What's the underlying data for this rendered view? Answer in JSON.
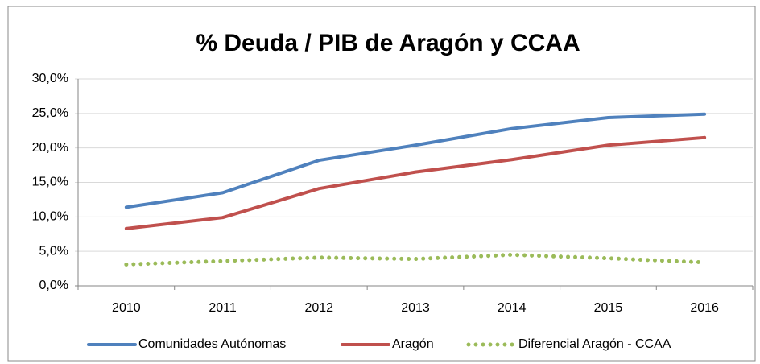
{
  "chart_data": {
    "type": "line",
    "title": "% Deuda / PIB de Aragón y CCAA",
    "categories": [
      "2010",
      "2011",
      "2012",
      "2013",
      "2014",
      "2015",
      "2016"
    ],
    "series": [
      {
        "name": "Comunidades Autónomas",
        "color": "#4f81bd",
        "values": [
          11.4,
          13.5,
          18.2,
          20.4,
          22.8,
          24.4,
          24.9
        ]
      },
      {
        "name": "Aragón",
        "color": "#c0504d",
        "values": [
          8.3,
          9.9,
          14.1,
          16.5,
          18.3,
          20.4,
          21.5
        ]
      },
      {
        "name": "Diferencial Aragón - CCAA",
        "color": "#9bbb59",
        "dotted": true,
        "values": [
          3.1,
          3.6,
          4.1,
          3.9,
          4.5,
          4.0,
          3.4
        ]
      }
    ],
    "ylim": [
      0,
      30
    ],
    "yticks": [
      {
        "value": 0,
        "label": "0,0%"
      },
      {
        "value": 5,
        "label": "5,0%"
      },
      {
        "value": 10,
        "label": "10,0%"
      },
      {
        "value": 15,
        "label": "15,0%"
      },
      {
        "value": 20,
        "label": "20,0%"
      },
      {
        "value": 25,
        "label": "25,0%"
      },
      {
        "value": 30,
        "label": "30,0%"
      }
    ],
    "grid": true,
    "legend": "bottom"
  }
}
